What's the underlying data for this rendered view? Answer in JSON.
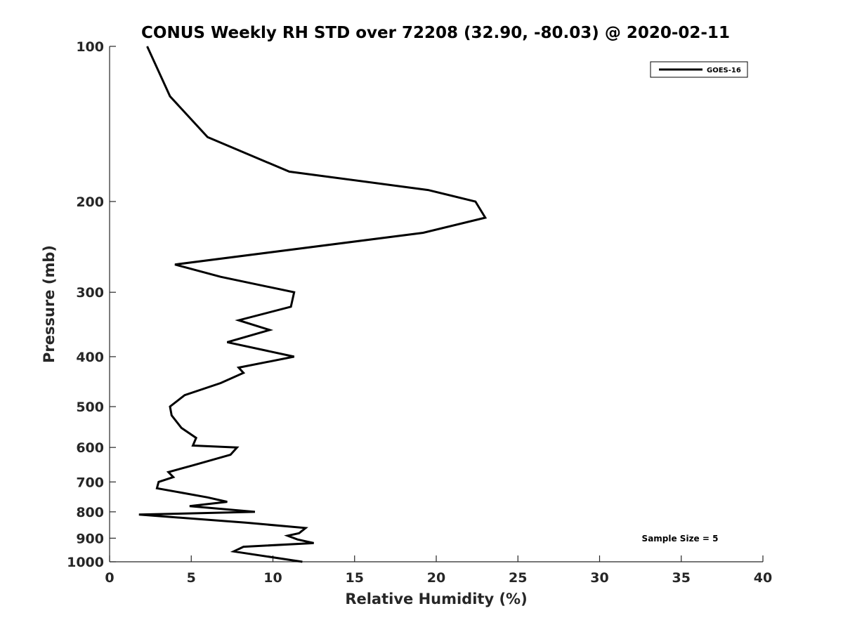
{
  "chart_data": {
    "type": "line",
    "title": "CONUS Weekly RH STD over 72208 (32.90, -80.03) @ 2020-02-11",
    "xlabel": "Relative Humidity (%)",
    "ylabel": "Pressure (mb)",
    "xlim": [
      0,
      40
    ],
    "ylim": [
      100,
      1000
    ],
    "y_scale": "log",
    "y_reversed": true,
    "x_ticks": [
      "0",
      "5",
      "10",
      "15",
      "20",
      "25",
      "30",
      "35",
      "40"
    ],
    "y_ticks": [
      "100",
      "200",
      "300",
      "400",
      "500",
      "600",
      "700",
      "800",
      "900",
      "1000"
    ],
    "legend": {
      "position": "top-right",
      "entries": [
        "GOES-16"
      ]
    },
    "grid": false,
    "annotation": "Sample Size = 5",
    "series": [
      {
        "name": "GOES-16",
        "color": "#000000",
        "points": [
          [
            2.3,
            100
          ],
          [
            3.7,
            125
          ],
          [
            6.0,
            150
          ],
          [
            11.0,
            175
          ],
          [
            19.5,
            190
          ],
          [
            22.4,
            200
          ],
          [
            23.0,
            215
          ],
          [
            19.2,
            230
          ],
          [
            4.0,
            265
          ],
          [
            6.8,
            280
          ],
          [
            11.3,
            300
          ],
          [
            11.1,
            320
          ],
          [
            7.9,
            340
          ],
          [
            9.8,
            355
          ],
          [
            7.2,
            375
          ],
          [
            11.3,
            400
          ],
          [
            7.9,
            420
          ],
          [
            8.2,
            430
          ],
          [
            6.8,
            450
          ],
          [
            4.6,
            475
          ],
          [
            3.7,
            500
          ],
          [
            3.8,
            520
          ],
          [
            4.4,
            550
          ],
          [
            5.3,
            575
          ],
          [
            5.1,
            595
          ],
          [
            7.8,
            600
          ],
          [
            7.4,
            620
          ],
          [
            5.1,
            650
          ],
          [
            3.6,
            670
          ],
          [
            3.9,
            685
          ],
          [
            3.0,
            700
          ],
          [
            2.9,
            720
          ],
          [
            6.0,
            750
          ],
          [
            7.2,
            765
          ],
          [
            4.9,
            780
          ],
          [
            8.9,
            800
          ],
          [
            1.8,
            810
          ],
          [
            8.4,
            840
          ],
          [
            12.0,
            860
          ],
          [
            11.6,
            880
          ],
          [
            10.9,
            890
          ],
          [
            11.5,
            905
          ],
          [
            12.5,
            920
          ],
          [
            8.2,
            935
          ],
          [
            7.6,
            955
          ],
          [
            11.8,
            1000
          ]
        ]
      }
    ]
  }
}
